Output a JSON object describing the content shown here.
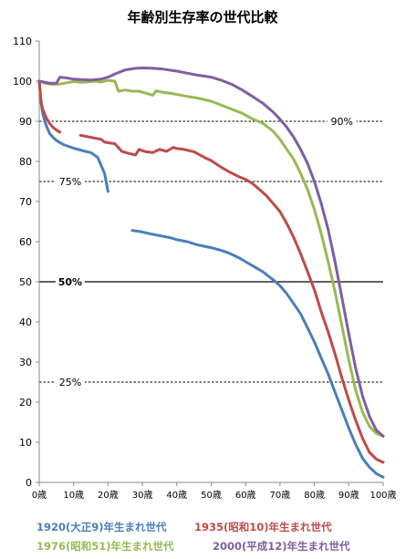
{
  "chart_data": {
    "type": "line",
    "title": "年齢別生存率の世代比較",
    "xlabel": "",
    "ylabel": "",
    "xlim": [
      0,
      100
    ],
    "ylim": [
      0,
      110
    ],
    "x_ticks": [
      {
        "value": 0,
        "label": "0歳"
      },
      {
        "value": 10,
        "label": "10歳"
      },
      {
        "value": 20,
        "label": "20歳"
      },
      {
        "value": 30,
        "label": "30歳"
      },
      {
        "value": 40,
        "label": "40歳"
      },
      {
        "value": 50,
        "label": "50歳"
      },
      {
        "value": 60,
        "label": "60歳"
      },
      {
        "value": 70,
        "label": "70歳"
      },
      {
        "value": 80,
        "label": "80歳"
      },
      {
        "value": 90,
        "label": "90歳"
      },
      {
        "value": 100,
        "label": "100歳"
      }
    ],
    "y_ticks": [
      0,
      10,
      20,
      30,
      40,
      50,
      60,
      70,
      80,
      90,
      100,
      110
    ],
    "grid": false,
    "legend_position": "bottom",
    "reference_lines": [
      {
        "y": 90,
        "label": "90%",
        "style": "dashed",
        "label_side": "right"
      },
      {
        "y": 75,
        "label": "75%",
        "style": "dashed",
        "label_side": "left"
      },
      {
        "y": 50,
        "label": "50%",
        "style": "solid",
        "label_side": "left"
      },
      {
        "y": 25,
        "label": "25%",
        "style": "dashed",
        "label_side": "left"
      }
    ],
    "series": [
      {
        "name": "1920(大正9)年生まれ世代",
        "color": "#4a7ebb",
        "segments": [
          [
            [
              0,
              100
            ],
            [
              0.5,
              95
            ],
            [
              1,
              92
            ],
            [
              2,
              89
            ],
            [
              3,
              87
            ],
            [
              4,
              86
            ],
            [
              5,
              85.2
            ],
            [
              7,
              84.2
            ],
            [
              10,
              83.3
            ],
            [
              13,
              82.6
            ],
            [
              15,
              82.2
            ],
            [
              17,
              81
            ],
            [
              19,
              77
            ],
            [
              20,
              72.5
            ]
          ],
          [
            [
              27,
              62.8
            ],
            [
              30,
              62.4
            ],
            [
              32,
              62
            ],
            [
              35,
              61.5
            ],
            [
              38,
              61
            ],
            [
              40,
              60.5
            ],
            [
              43,
              60
            ],
            [
              46,
              59.2
            ],
            [
              50,
              58.5
            ],
            [
              53,
              57.8
            ],
            [
              55,
              57.2
            ],
            [
              58,
              56
            ],
            [
              60,
              55
            ],
            [
              63,
              53.5
            ],
            [
              65,
              52.5
            ],
            [
              68,
              50.5
            ],
            [
              70,
              49
            ],
            [
              72,
              47
            ],
            [
              74,
              44.5
            ],
            [
              76,
              42
            ],
            [
              78,
              38.5
            ],
            [
              80,
              35
            ],
            [
              82,
              31
            ],
            [
              84,
              27
            ],
            [
              86,
              22.5
            ],
            [
              88,
              18
            ],
            [
              90,
              13.5
            ],
            [
              92,
              9.5
            ],
            [
              94,
              6
            ],
            [
              96,
              3.8
            ],
            [
              98,
              2.2
            ],
            [
              100,
              1.3
            ]
          ]
        ]
      },
      {
        "name": "1935(昭和10)年生まれ世代",
        "color": "#be4b48",
        "segments": [
          [
            [
              0,
              100
            ],
            [
              0.5,
              95
            ],
            [
              1,
              93
            ],
            [
              2,
              91
            ],
            [
              3,
              89.5
            ],
            [
              4,
              88.5
            ],
            [
              5,
              87.8
            ],
            [
              6,
              87.3
            ]
          ],
          [
            [
              12,
              86.5
            ],
            [
              15,
              86
            ],
            [
              18,
              85.5
            ],
            [
              19,
              84.8
            ],
            [
              22,
              84.4
            ],
            [
              24,
              82.5
            ],
            [
              26,
              82
            ],
            [
              28,
              81.6
            ],
            [
              29,
              83
            ],
            [
              31,
              82.4
            ],
            [
              33,
              82.2
            ],
            [
              35,
              83
            ],
            [
              37,
              82.5
            ],
            [
              39,
              83.5
            ],
            [
              40,
              83.2
            ],
            [
              42,
              83
            ],
            [
              45,
              82.4
            ],
            [
              48,
              81
            ],
            [
              50,
              80.2
            ],
            [
              53,
              78.5
            ],
            [
              55,
              77.5
            ],
            [
              58,
              76.2
            ],
            [
              60,
              75.5
            ],
            [
              62,
              74.5
            ],
            [
              64,
              73
            ],
            [
              66,
              71.5
            ],
            [
              68,
              69.5
            ],
            [
              70,
              67.5
            ],
            [
              72,
              64.5
            ],
            [
              74,
              61
            ],
            [
              76,
              57
            ],
            [
              78,
              52.5
            ],
            [
              80,
              48
            ],
            [
              82,
              42.5
            ],
            [
              84,
              37.5
            ],
            [
              86,
              32
            ],
            [
              88,
              26
            ],
            [
              90,
              20.5
            ],
            [
              92,
              15.5
            ],
            [
              94,
              11
            ],
            [
              96,
              7.5
            ],
            [
              98,
              5.8
            ],
            [
              100,
              5
            ]
          ]
        ]
      },
      {
        "name": "1976(昭和51)年生まれ世代",
        "color": "#98b954",
        "segments": [
          [
            [
              0,
              100
            ],
            [
              2,
              99.4
            ],
            [
              4,
              99.2
            ],
            [
              6,
              99.3
            ],
            [
              8,
              99.6
            ],
            [
              10,
              99.9
            ],
            [
              12,
              99.7
            ],
            [
              14,
              99.8
            ],
            [
              16,
              100
            ],
            [
              18,
              99.8
            ],
            [
              20,
              100.2
            ],
            [
              22,
              100
            ],
            [
              23,
              97.5
            ],
            [
              25,
              97.8
            ],
            [
              27,
              97.5
            ],
            [
              29,
              97.5
            ],
            [
              31,
              97
            ],
            [
              33,
              96.5
            ],
            [
              34,
              97.6
            ],
            [
              36,
              97.2
            ],
            [
              38,
              97
            ],
            [
              40,
              96.7
            ],
            [
              43,
              96.2
            ],
            [
              46,
              95.8
            ],
            [
              50,
              95
            ],
            [
              53,
              94
            ],
            [
              56,
              93
            ],
            [
              59,
              92
            ],
            [
              62,
              90.6
            ],
            [
              65,
              89.5
            ],
            [
              68,
              87.5
            ],
            [
              70,
              85.5
            ],
            [
              72,
              83
            ],
            [
              74,
              80.5
            ],
            [
              76,
              77
            ],
            [
              78,
              73
            ],
            [
              80,
              68
            ],
            [
              82,
              62
            ],
            [
              84,
              55
            ],
            [
              86,
              47.5
            ],
            [
              88,
              39
            ],
            [
              90,
              30.5
            ],
            [
              92,
              23
            ],
            [
              94,
              17.5
            ],
            [
              96,
              14
            ],
            [
              98,
              12.2
            ],
            [
              100,
              11.5
            ]
          ]
        ]
      },
      {
        "name": "2000(平成12)年生まれ世代",
        "color": "#7e5fa0",
        "segments": [
          [
            [
              0,
              100
            ],
            [
              3,
              99.5
            ],
            [
              5,
              99.5
            ],
            [
              6,
              101
            ],
            [
              8,
              100.8
            ],
            [
              10,
              100.5
            ],
            [
              12,
              100.4
            ],
            [
              15,
              100.3
            ],
            [
              18,
              100.5
            ],
            [
              20,
              101
            ],
            [
              22,
              101.8
            ],
            [
              25,
              102.8
            ],
            [
              28,
              103.2
            ],
            [
              30,
              103.3
            ],
            [
              33,
              103.2
            ],
            [
              36,
              103
            ],
            [
              40,
              102.5
            ],
            [
              43,
              102
            ],
            [
              46,
              101.5
            ],
            [
              50,
              101
            ],
            [
              53,
              100.2
            ],
            [
              56,
              99.2
            ],
            [
              59,
              97.8
            ],
            [
              62,
              96.2
            ],
            [
              65,
              94.5
            ],
            [
              68,
              92.3
            ],
            [
              70,
              90.5
            ],
            [
              72,
              88.5
            ],
            [
              74,
              86
            ],
            [
              76,
              83
            ],
            [
              78,
              79.5
            ],
            [
              80,
              75
            ],
            [
              82,
              69.5
            ],
            [
              84,
              63
            ],
            [
              86,
              55
            ],
            [
              88,
              46
            ],
            [
              90,
              37
            ],
            [
              92,
              28.5
            ],
            [
              94,
              21.5
            ],
            [
              96,
              16.5
            ],
            [
              98,
              13
            ],
            [
              100,
              11.5
            ]
          ]
        ]
      }
    ]
  }
}
